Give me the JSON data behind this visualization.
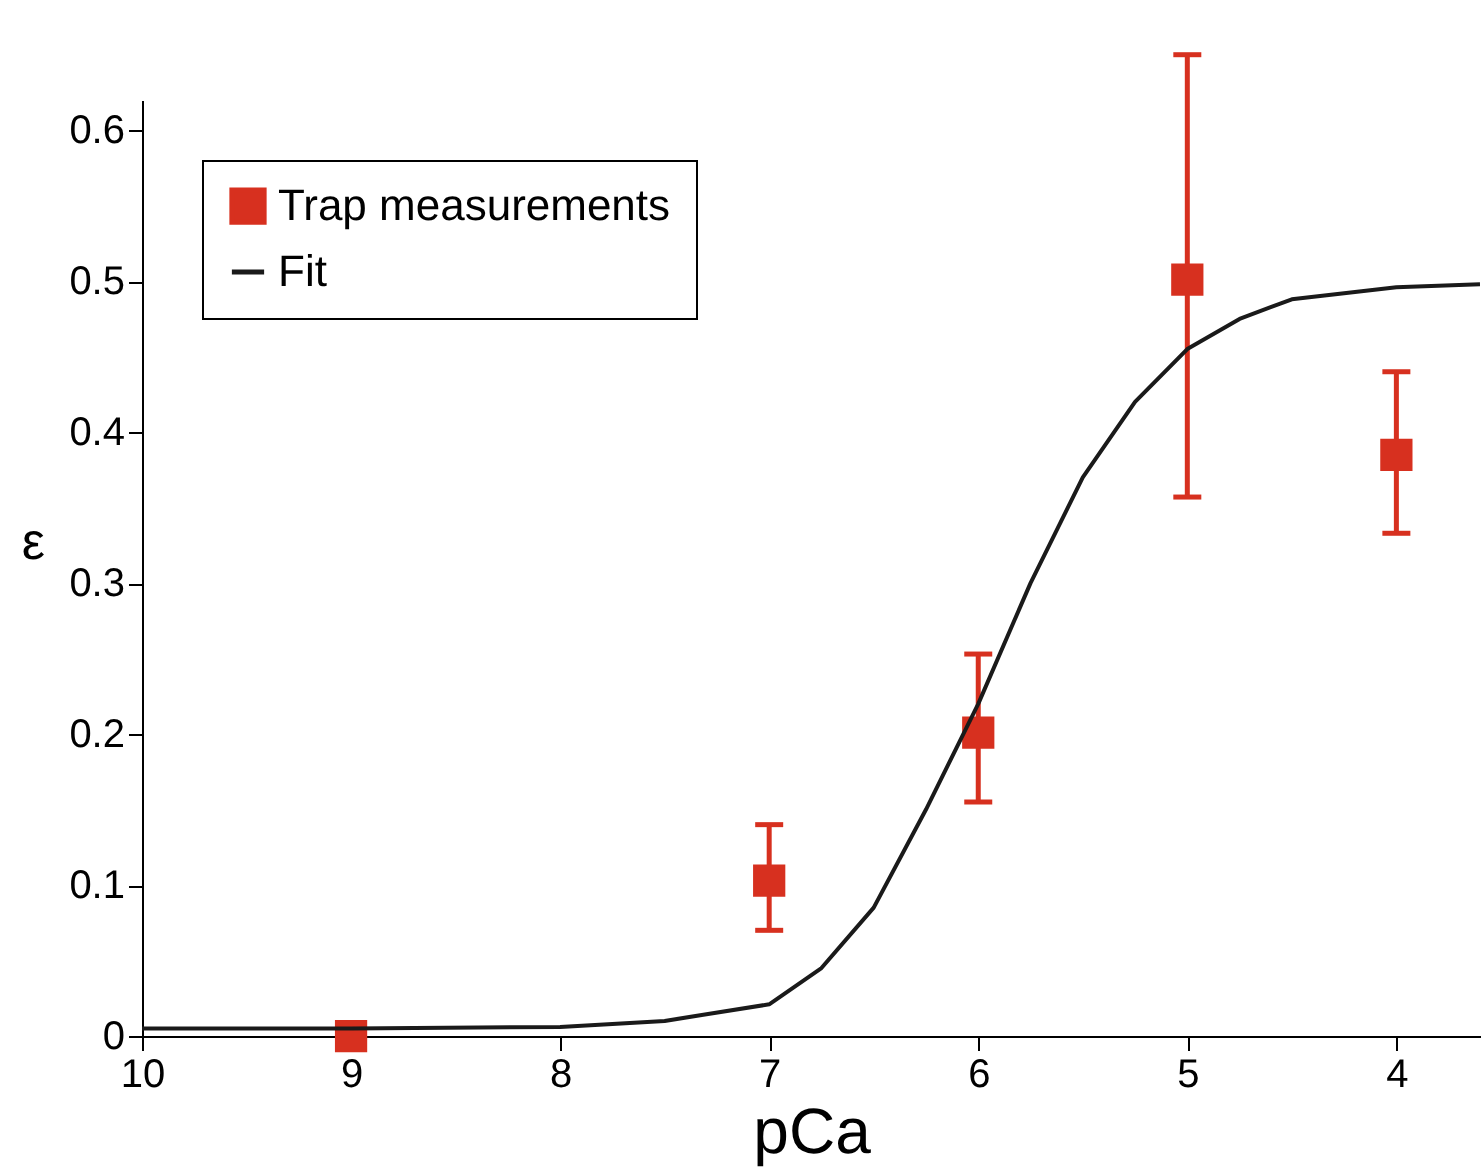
{
  "chart_data": {
    "type": "scatter",
    "xlabel": "pCa",
    "ylabel": "ε",
    "xlim": [
      10,
      3.6
    ],
    "xticks": [
      10,
      9,
      8,
      7,
      6,
      5,
      4
    ],
    "ylim": [
      0,
      0.62
    ],
    "yticks": [
      0,
      0.1,
      0.2,
      0.3,
      0.4,
      0.5,
      0.6
    ],
    "grid": false,
    "legend": "top left",
    "series": [
      {
        "name": "Trap measurements",
        "marker": "square",
        "color": "#d7301f",
        "x": [
          9,
          7,
          6,
          5,
          4
        ],
        "values": [
          0.0,
          0.103,
          0.201,
          0.501,
          0.385
        ],
        "errors": [
          null,
          [
            0.07,
            0.14
          ],
          [
            0.155,
            0.253
          ],
          [
            0.357,
            0.65
          ],
          [
            0.333,
            0.44
          ]
        ]
      },
      {
        "name": "Fit",
        "type": "line",
        "line_style": "solid",
        "color": "#1a1a1a",
        "x": [
          10,
          9,
          8,
          7.5,
          7,
          6.75,
          6.5,
          6.25,
          6,
          5.75,
          5.5,
          5.25,
          5,
          4.75,
          4.5,
          4,
          3.6
        ],
        "values": [
          0.005,
          0.005,
          0.006,
          0.01,
          0.021,
          0.045,
          0.085,
          0.15,
          0.22,
          0.3,
          0.37,
          0.42,
          0.455,
          0.475,
          0.488,
          0.496,
          0.498
        ]
      }
    ]
  }
}
